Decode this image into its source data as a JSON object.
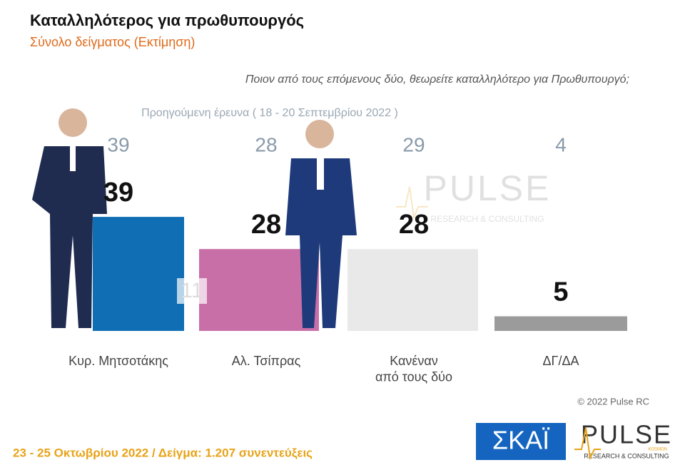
{
  "chart_data": {
    "type": "bar",
    "title": "Καταλληλότερος για πρωθυπουργός",
    "subtitle": "Σύνολο δείγματος   (Εκτίμηση)",
    "question": "Ποιον από τους επόμενους δύο, θεωρείτε καταλληλότερο για Πρωθυπουργό;",
    "previous_label": "Προηγούμενη έρευνα  ( 18 - 20 Σεπτεμβρίου  2022 )",
    "categories": [
      "Κυρ. Μητσοτάκης",
      "Αλ. Τσίπρας",
      "Κανέναν\nαπό τους δύο",
      "ΔΓ/ΔΑ"
    ],
    "values": [
      39,
      28,
      28,
      5
    ],
    "previous_values": [
      39,
      28,
      29,
      4
    ],
    "colors": [
      "#0f6eb4",
      "#c86fa8",
      "#e9e9e9",
      "#9b9b9b"
    ],
    "lead": 11,
    "ylim": [
      0,
      50
    ],
    "copyright": "© 2022 Pulse RC",
    "footer": "23 - 25  Οκτωβρίου  2022  /  Δείγμα:  1.207 συνεντεύξεις",
    "logos": {
      "skai": "ΣΚΑΪ",
      "pulse": "PULSE",
      "pulse_sub": "RESEARCH & CONSULTING",
      "pulse_tag": "KOSMON"
    }
  }
}
